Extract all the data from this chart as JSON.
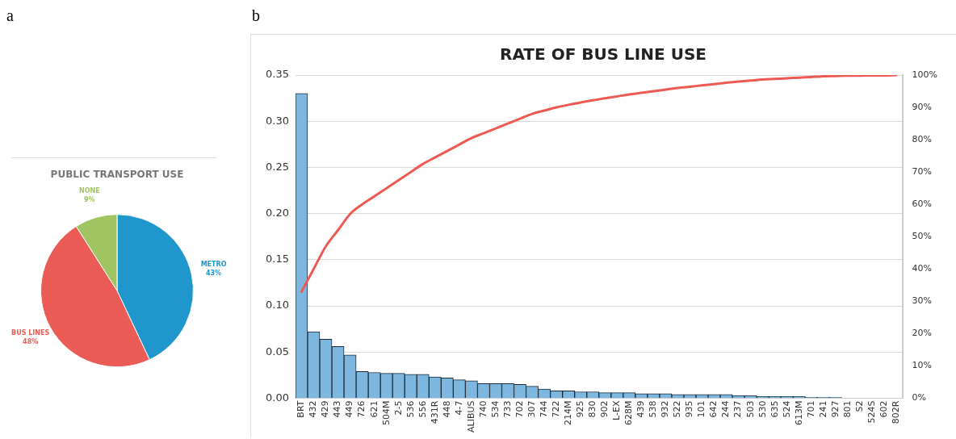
{
  "chart_data": [
    {
      "type": "pie",
      "title": "PUBLIC TRANSPORT USE",
      "annotations": [
        "a"
      ],
      "categories": [
        "METRO",
        "BUS LINES",
        "NONE"
      ],
      "values": [
        43,
        48,
        9
      ],
      "colors": [
        "#1f97cc",
        "#eb5c57",
        "#9fc461"
      ],
      "value_labels": [
        "43%",
        "48%",
        "9%"
      ],
      "legend": false
    },
    {
      "type": "bar",
      "title": "RATE OF BUS LINE USE",
      "annotations": [
        "b"
      ],
      "categories": [
        "BRT",
        "432",
        "429",
        "443",
        "449",
        "726",
        "621",
        "504M",
        "2-5",
        "536",
        "556",
        "431R",
        "448",
        "4-7",
        "ALIBUS",
        "740",
        "534",
        "733",
        "702",
        "307",
        "744",
        "722",
        "214M",
        "925",
        "830",
        "902",
        "L-EX",
        "628M",
        "439",
        "538",
        "932",
        "522",
        "935",
        "101",
        "642",
        "244",
        "237",
        "503",
        "530",
        "635",
        "524",
        "613M",
        "701",
        "241",
        "927",
        "801",
        "S2",
        "524S",
        "602",
        "802R"
      ],
      "series": [
        {
          "type": "bar",
          "color": "#7db7df",
          "values": [
            0.33,
            0.072,
            0.064,
            0.056,
            0.047,
            0.029,
            0.028,
            0.027,
            0.027,
            0.026,
            0.026,
            0.023,
            0.022,
            0.02,
            0.019,
            0.016,
            0.016,
            0.016,
            0.015,
            0.013,
            0.01,
            0.008,
            0.008,
            0.007,
            0.007,
            0.006,
            0.006,
            0.006,
            0.005,
            0.005,
            0.005,
            0.004,
            0.004,
            0.004,
            0.004,
            0.004,
            0.003,
            0.003,
            0.002,
            0.002,
            0.002,
            0.002,
            0.001,
            0.001,
            0.001,
            0,
            0,
            0,
            0,
            0
          ]
        },
        {
          "type": "line",
          "axis": "y2",
          "color": "#ed5a53",
          "values": [
            33,
            40,
            47,
            52,
            57,
            60,
            62.5,
            65,
            67.5,
            70,
            72.5,
            74.5,
            76.5,
            78.5,
            80.5,
            82,
            83.5,
            85,
            86.5,
            88,
            89,
            90,
            90.8,
            91.5,
            92.2,
            92.8,
            93.4,
            94,
            94.5,
            95,
            95.5,
            96,
            96.4,
            96.8,
            97.2,
            97.6,
            98,
            98.3,
            98.6,
            98.8,
            99,
            99.2,
            99.4,
            99.6,
            99.7,
            99.8,
            99.8,
            99.9,
            99.9,
            100
          ]
        }
      ],
      "ylim": [
        0,
        0.35
      ],
      "yticks": [
        {
          "value": 0,
          "label": "0.00"
        },
        {
          "value": 0.05,
          "label": "0.05"
        },
        {
          "value": 0.1,
          "label": "0.10"
        },
        {
          "value": 0.15,
          "label": "0.15"
        },
        {
          "value": 0.2,
          "label": "0.20"
        },
        {
          "value": 0.25,
          "label": "0.25"
        },
        {
          "value": 0.3,
          "label": "0.30"
        },
        {
          "value": 0.35,
          "label": "0.35"
        }
      ],
      "y2lim": [
        0,
        100
      ],
      "y2ticks": [
        {
          "value": 0,
          "label": "0%"
        },
        {
          "value": 10,
          "label": "10%"
        },
        {
          "value": 20,
          "label": "20%"
        },
        {
          "value": 30,
          "label": "30%"
        },
        {
          "value": 40,
          "label": "40%"
        },
        {
          "value": 50,
          "label": "50%"
        },
        {
          "value": 60,
          "label": "60%"
        },
        {
          "value": 70,
          "label": "70%"
        },
        {
          "value": 80,
          "label": "80%"
        },
        {
          "value": 90,
          "label": "90%"
        },
        {
          "value": 100,
          "label": "100%"
        }
      ],
      "grid": "y",
      "legend": false,
      "marker": "none",
      "line_style": "solid"
    }
  ]
}
